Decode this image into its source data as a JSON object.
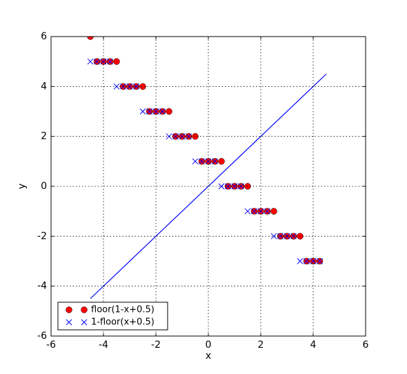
{
  "chart_data": {
    "type": "line",
    "xlabel": "x",
    "ylabel": "y",
    "xlim": [
      -6,
      6
    ],
    "ylim": [
      -6,
      6
    ],
    "xticks": [
      -6,
      -4,
      -2,
      0,
      2,
      4,
      6
    ],
    "yticks": [
      -6,
      -4,
      -2,
      0,
      2,
      4,
      6
    ],
    "grid": true,
    "legend": "lower left",
    "series": [
      {
        "name": "floor(1-x+0.5)",
        "color": "#ff0000",
        "marker": "o",
        "linestyle": "none",
        "x": [
          -4.5,
          -4.25,
          -4,
          -3.75,
          -3.5,
          -3.25,
          -3,
          -2.75,
          -2.5,
          -2.25,
          -2,
          -1.75,
          -1.5,
          -1.25,
          -1,
          -0.75,
          -0.5,
          -0.25,
          0,
          0.25,
          0.5,
          0.75,
          1,
          1.25,
          1.5,
          1.75,
          2,
          2.25,
          2.5,
          2.75,
          3,
          3.25,
          3.5,
          3.75,
          4,
          4.25
        ],
        "values": [
          6,
          5,
          5,
          5,
          5,
          4,
          4,
          4,
          4,
          3,
          3,
          3,
          3,
          2,
          2,
          2,
          2,
          1,
          1,
          1,
          1,
          0,
          0,
          0,
          0,
          -1,
          -1,
          -1,
          -1,
          -2,
          -2,
          -2,
          -2,
          -3,
          -3,
          -3
        ]
      },
      {
        "name": "1-floor(x+0.5)",
        "color": "#0000ff",
        "marker": "x",
        "linestyle": "none",
        "x": [
          -4.5,
          -4.25,
          -4,
          -3.75,
          -3.5,
          -3.25,
          -3,
          -2.75,
          -2.5,
          -2.25,
          -2,
          -1.75,
          -1.5,
          -1.25,
          -1,
          -0.75,
          -0.5,
          -0.25,
          0,
          0.25,
          0.5,
          0.75,
          1,
          1.25,
          1.5,
          1.75,
          2,
          2.25,
          2.5,
          2.75,
          3,
          3.25,
          3.5,
          3.75,
          4,
          4.25
        ],
        "values": [
          5,
          5,
          5,
          5,
          4,
          4,
          4,
          4,
          3,
          3,
          3,
          3,
          2,
          2,
          2,
          2,
          1,
          1,
          1,
          1,
          0,
          0,
          0,
          0,
          -1,
          -1,
          -1,
          -1,
          -2,
          -2,
          -2,
          -2,
          -3,
          -3,
          -3,
          -3
        ]
      },
      {
        "color": "#0000ff",
        "marker": "none",
        "linestyle": "solid",
        "x": [
          -4.5,
          4.5
        ],
        "values": [
          -4.5,
          4.5
        ]
      }
    ]
  }
}
